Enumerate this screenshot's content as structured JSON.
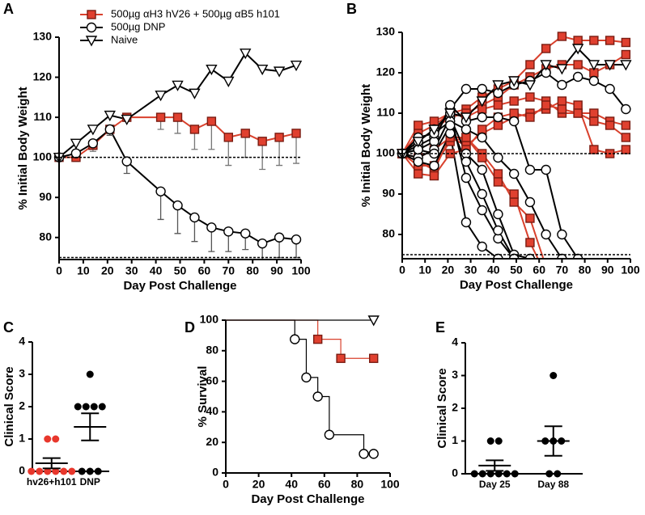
{
  "chart_data": [
    {
      "type": "line",
      "panel": "A",
      "x_label": "Day Post Challenge",
      "y_label": "% Initial Body Weight",
      "xlim": [
        0,
        100
      ],
      "xticks": [
        0,
        10,
        20,
        30,
        40,
        50,
        60,
        70,
        80,
        90,
        100
      ],
      "ylim": [
        74.5,
        130
      ],
      "yticks": [
        80,
        90,
        100,
        110,
        120,
        130
      ],
      "hlines": [
        100,
        75
      ],
      "legend": "top-left",
      "x": [
        0,
        7,
        14,
        21,
        28,
        42,
        49,
        56,
        63,
        70,
        77,
        84,
        91,
        98
      ],
      "series": [
        {
          "name": "500µg αH3 hV26 + 500µg αB5 h101",
          "color": "#d9412d",
          "marker": "square",
          "marker_fill": "#e0402f",
          "marker_stroke": "#7a1c12",
          "values": [
            100,
            100,
            103,
            107,
            110,
            110,
            110,
            107,
            109,
            105,
            106,
            104,
            105,
            106
          ],
          "errors": [
            null,
            1,
            1.5,
            1.5,
            1,
            3,
            4,
            5,
            7,
            7,
            6,
            7,
            7,
            7.5
          ]
        },
        {
          "name": "500µg DNP",
          "color": "#000000",
          "marker": "circle",
          "marker_fill": "#ffffff",
          "marker_stroke": "#000000",
          "values": [
            100,
            101,
            103.5,
            107,
            99,
            91.5,
            88,
            85,
            82.5,
            81.5,
            81,
            78.5,
            80,
            79.5
          ],
          "errors": [
            null,
            1,
            1,
            1.5,
            3,
            7,
            7,
            6,
            6,
            5,
            4,
            4,
            5,
            4.5
          ]
        },
        {
          "name": "Naive",
          "color": "#000000",
          "marker": "triangle-down",
          "marker_fill": "#ffffff",
          "marker_stroke": "#000000",
          "values": [
            100,
            103.5,
            107,
            110.5,
            109.5,
            115.5,
            118,
            116,
            122,
            119,
            126,
            122,
            121.5,
            123
          ]
        }
      ]
    },
    {
      "type": "line",
      "panel": "B",
      "x_label": "Day Post Challenge",
      "y_label": "% Initial Body Weight",
      "xlim": [
        0,
        100
      ],
      "xticks": [
        0,
        10,
        20,
        30,
        40,
        50,
        60,
        70,
        80,
        90,
        100
      ],
      "ylim": [
        74,
        130
      ],
      "yticks": [
        80,
        90,
        100,
        110,
        120,
        130
      ],
      "hlines": [
        100,
        75
      ],
      "x": [
        0,
        7,
        14,
        21,
        28,
        35,
        42,
        49,
        56,
        63,
        70,
        77,
        84,
        91,
        98
      ],
      "series": [
        {
          "color": "#d9412d",
          "marker": "square",
          "marker_fill": "#e0402f",
          "marker_stroke": "#7a1c12",
          "values": [
            100,
            105,
            107,
            110,
            111,
            114,
            116,
            118,
            122,
            126,
            129,
            128,
            128,
            128,
            127.5
          ]
        },
        {
          "color": "#d9412d",
          "marker": "square",
          "marker_fill": "#e0402f",
          "marker_stroke": "#7a1c12",
          "values": [
            100,
            103,
            106,
            109,
            110,
            112,
            114,
            117,
            119,
            121,
            122,
            122,
            120,
            122,
            124.5
          ]
        },
        {
          "color": "#d9412d",
          "marker": "square",
          "marker_fill": "#e0402f",
          "marker_stroke": "#7a1c12",
          "values": [
            100,
            107,
            108,
            110,
            109,
            111,
            112,
            113,
            114,
            113,
            110,
            110,
            110,
            108,
            107
          ]
        },
        {
          "color": "#d9412d",
          "marker": "square",
          "marker_fill": "#e0402f",
          "marker_stroke": "#7a1c12",
          "values": [
            100,
            98,
            96,
            104,
            102,
            105,
            107,
            109,
            110,
            111,
            113,
            112,
            101,
            100,
            101
          ]
        },
        {
          "color": "#d9412d",
          "marker": "square",
          "marker_fill": "#e0402f",
          "marker_stroke": "#7a1c12",
          "values": [
            100,
            95,
            94.5,
            100,
            101,
            106,
            109,
            110,
            109,
            112,
            111,
            110,
            108,
            107,
            104
          ]
        },
        {
          "color": "#d9412d",
          "marker": "square",
          "marker_fill": "#e0402f",
          "marker_stroke": "#7a1c12",
          "values": [
            100,
            97,
            97,
            103,
            104,
            100,
            95,
            88,
            84,
            72,
            null,
            null,
            null,
            null,
            null
          ]
        },
        {
          "color": "#d9412d",
          "marker": "square",
          "marker_fill": "#e0402f",
          "marker_stroke": "#7a1c12",
          "values": [
            100,
            99,
            101,
            104,
            104,
            99,
            93,
            90,
            78,
            70,
            null,
            null,
            null,
            null,
            null
          ]
        },
        {
          "color": "#000000",
          "marker": "circle",
          "marker_fill": "#ffffff",
          "marker_stroke": "#000000",
          "values": [
            100,
            102,
            104,
            111,
            116,
            116,
            115,
            117,
            118,
            120,
            117,
            119,
            118,
            116,
            111
          ]
        },
        {
          "color": "#000000",
          "marker": "circle",
          "marker_fill": "#ffffff",
          "marker_stroke": "#000000",
          "values": [
            100,
            101,
            103,
            112,
            108,
            109,
            109,
            108,
            96,
            96,
            80,
            74,
            null,
            null,
            null
          ]
        },
        {
          "color": "#000000",
          "marker": "circle",
          "marker_fill": "#ffffff",
          "marker_stroke": "#000000",
          "values": [
            100,
            99,
            101,
            109,
            100,
            96,
            85,
            75,
            74,
            null,
            null,
            null,
            null,
            null,
            null
          ]
        },
        {
          "color": "#000000",
          "marker": "circle",
          "marker_fill": "#ffffff",
          "marker_stroke": "#000000",
          "values": [
            100,
            98,
            97,
            105,
            83,
            77,
            74,
            null,
            null,
            null,
            null,
            null,
            null,
            null,
            null
          ]
        },
        {
          "color": "#000000",
          "marker": "circle",
          "marker_fill": "#ffffff",
          "marker_stroke": "#000000",
          "values": [
            100,
            103,
            106,
            110,
            94,
            86,
            79,
            74,
            null,
            null,
            null,
            null,
            null,
            null,
            null
          ]
        },
        {
          "color": "#000000",
          "marker": "circle",
          "marker_fill": "#ffffff",
          "marker_stroke": "#000000",
          "values": [
            100,
            104,
            105,
            108,
            106,
            104,
            99,
            95,
            88,
            80,
            74,
            null,
            null,
            null,
            null
          ]
        },
        {
          "color": "#000000",
          "marker": "circle",
          "marker_fill": "#ffffff",
          "marker_stroke": "#000000",
          "values": [
            100,
            101,
            100,
            107,
            98,
            90,
            81,
            74,
            null,
            null,
            null,
            null,
            null,
            null,
            null
          ]
        },
        {
          "color": "#000000",
          "marker": "triangle-down",
          "marker_fill": "#ffffff",
          "marker_stroke": "#000000",
          "values": [
            100,
            103,
            106,
            110,
            109,
            113,
            117,
            118,
            117,
            122,
            121,
            126,
            122,
            122,
            122
          ]
        }
      ]
    },
    {
      "type": "dot",
      "panel": "C",
      "y_label": "Clinical Score",
      "ylim": [
        0,
        4
      ],
      "yticks": [
        0,
        1,
        2,
        3,
        4
      ],
      "categories": [
        "hv26+h101",
        "DNP"
      ],
      "colors": [
        "#e8372c",
        "#000000"
      ],
      "points": [
        [
          0,
          0,
          0,
          0,
          0,
          0,
          1,
          1
        ],
        [
          3,
          2,
          2,
          2,
          2,
          0,
          0,
          0
        ]
      ],
      "means": [
        0.25,
        1.375
      ],
      "sems": [
        0.16,
        0.42
      ]
    },
    {
      "type": "survival",
      "panel": "D",
      "x_label": "Day Post Challenge",
      "y_label": "% Survival",
      "xlim": [
        0,
        100
      ],
      "xticks": [
        0,
        20,
        40,
        60,
        80,
        100
      ],
      "ylim": [
        0,
        100
      ],
      "yticks": [
        0,
        20,
        40,
        60,
        80,
        100
      ],
      "series": [
        {
          "color": "#000000",
          "marker": "circle",
          "marker_fill": "#ffffff",
          "marker_stroke": "#000000",
          "x": [
            0,
            42,
            49,
            56,
            63,
            84,
            90
          ],
          "values": [
            100,
            87.5,
            62.5,
            50,
            25,
            12.5,
            12.5
          ]
        },
        {
          "color": "#d9412d",
          "marker": "square",
          "marker_fill": "#e0402f",
          "marker_stroke": "#7a1c12",
          "x": [
            0,
            56,
            70,
            90
          ],
          "values": [
            100,
            87.5,
            75,
            75
          ]
        },
        {
          "color": "#000000",
          "marker": "triangle-down",
          "marker_fill": "#ffffff",
          "marker_stroke": "#000000",
          "x": [
            0,
            90
          ],
          "values": [
            100,
            100
          ]
        }
      ]
    },
    {
      "type": "dot",
      "panel": "E",
      "y_label": "Clinical Score",
      "ylim": [
        0,
        4
      ],
      "yticks": [
        0,
        1,
        2,
        3,
        4
      ],
      "categories": [
        "Day 25",
        "Day 88"
      ],
      "colors": [
        "#000000",
        "#000000"
      ],
      "points": [
        [
          1,
          1,
          0,
          0,
          0,
          0,
          0,
          0
        ],
        [
          3,
          1,
          1,
          1,
          0,
          0
        ]
      ],
      "means": [
        0.25,
        1
      ],
      "sems": [
        0.16,
        0.45
      ]
    }
  ]
}
